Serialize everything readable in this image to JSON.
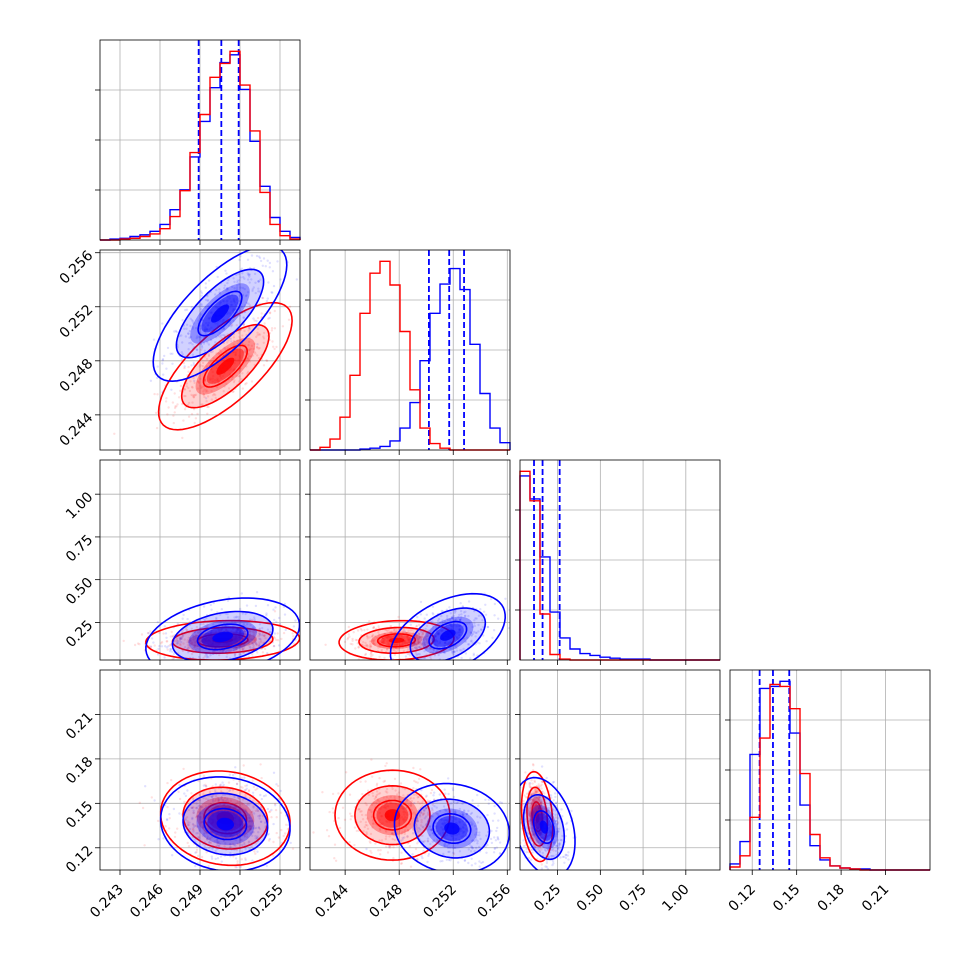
{
  "chart_data": {
    "type": "corner",
    "colors": {
      "blue": "#0000ff",
      "red": "#ff0000",
      "grid": "#b0b0b0"
    },
    "grid": true,
    "parameters": [
      {
        "range": [
          0.2415,
          0.2565
        ],
        "ticks": [
          0.243,
          0.246,
          0.249,
          0.252,
          0.255
        ],
        "tick_labels": [
          "0.243",
          "0.246",
          "0.249",
          "0.252",
          "0.255"
        ]
      },
      {
        "range": [
          0.2414,
          0.2562
        ],
        "ticks": [
          0.244,
          0.248,
          0.252,
          0.256
        ],
        "tick_labels": [
          "0.244",
          "0.248",
          "0.252",
          "0.256"
        ]
      },
      {
        "range": [
          0.03,
          1.2
        ],
        "ticks": [
          0.25,
          0.5,
          0.75,
          1.0
        ],
        "tick_labels": [
          "0.25",
          "0.50",
          "0.75",
          "1.00"
        ]
      },
      {
        "range": [
          0.105,
          0.24
        ],
        "ticks": [
          0.12,
          0.15,
          0.18,
          0.21
        ],
        "tick_labels": [
          "0.12",
          "0.15",
          "0.18",
          "0.21"
        ]
      }
    ],
    "series": [
      {
        "color": "#0000ff",
        "quantiles": [
          [
            0.2489,
            0.2506,
            0.2519
          ],
          [
            0.2502,
            0.2517,
            0.2528
          ],
          [
            0.112,
            0.162,
            0.262
          ],
          [
            0.125,
            0.134,
            0.145
          ]
        ],
        "marginals": [
          {
            "edges_start": 0.2415,
            "bin_width": 0.00075,
            "heights": [
              0,
              1,
              2,
              4,
              6,
              10,
              18,
              35,
              58,
              96,
              137,
              176,
              205,
              214,
              174,
              114,
              62,
              26,
              10,
              3
            ]
          },
          {
            "edges_start": 0.2414,
            "bin_width": 0.00074,
            "heights": [
              0,
              0,
              0,
              0,
              0,
              1,
              2,
              4,
              10,
              24,
              52,
              98,
              150,
              182,
              199,
              176,
              116,
              62,
              24,
              8
            ]
          },
          {
            "edges_start": 0.03,
            "bin_width": 0.0585,
            "heights": [
              200,
              175,
              112,
              52,
              24,
              12,
              7,
              5,
              3,
              2,
              1,
              1,
              1,
              0,
              0,
              0,
              0,
              0,
              0,
              0
            ]
          },
          {
            "edges_start": 0.105,
            "bin_width": 0.00675,
            "heights": [
              6,
              28,
              114,
              179,
              181,
              186,
              135,
              64,
              24,
              10,
              4,
              2,
              1,
              1,
              0,
              0,
              0,
              0,
              0,
              0
            ]
          }
        ]
      },
      {
        "color": "#ff0000",
        "quantiles": null,
        "marginals": [
          {
            "edges_start": 0.2415,
            "bin_width": 0.00075,
            "heights": [
              0,
              0,
              1,
              2,
              4,
              7,
              13,
              27,
              57,
              101,
              145,
              188,
              204,
              218,
              179,
              126,
              55,
              18,
              5,
              1
            ]
          },
          {
            "edges_start": 0.2414,
            "bin_width": 0.00074,
            "heights": [
              0,
              3,
              12,
              36,
              82,
              150,
              194,
              207,
              181,
              130,
              66,
              24,
              7,
              2,
              0,
              0,
              0,
              0,
              0,
              0
            ]
          },
          {
            "edges_start": 0.03,
            "bin_width": 0.0585,
            "heights": [
              205,
              173,
              50,
              6,
              1,
              0,
              0,
              0,
              0,
              0,
              0,
              0,
              0,
              0,
              0,
              0,
              0,
              0,
              0,
              0
            ]
          },
          {
            "edges_start": 0.105,
            "bin_width": 0.00675,
            "heights": [
              3,
              14,
              52,
              130,
              183,
              181,
              159,
              95,
              35,
              12,
              4,
              2,
              1,
              0,
              0,
              0,
              0,
              0,
              0,
              0
            ]
          }
        ]
      }
    ],
    "joint_2d": [
      {
        "pair": [
          0,
          1
        ],
        "blue": {
          "mean": [
            0.2505,
            0.2515
          ],
          "sd": [
            0.00165,
            0.00165
          ],
          "corr": 0.72
        },
        "red": {
          "mean": [
            0.2509,
            0.2476
          ],
          "sd": [
            0.00165,
            0.00155
          ],
          "corr": 0.72
        }
      },
      {
        "pair": [
          0,
          2
        ],
        "blue": {
          "mean": [
            0.2507,
            0.165
          ],
          "sd": [
            0.0019,
            0.075
          ],
          "corr": 0.3
        },
        "red": {
          "mean": [
            0.2507,
            0.145
          ],
          "sd": [
            0.0019,
            0.038
          ],
          "corr": 0.1
        }
      },
      {
        "pair": [
          1,
          2
        ],
        "blue": {
          "mean": [
            0.2516,
            0.175
          ],
          "sd": [
            0.0014,
            0.08
          ],
          "corr": 0.45
        },
        "red": {
          "mean": [
            0.2478,
            0.145
          ],
          "sd": [
            0.0014,
            0.038
          ],
          "corr": 0.1
        }
      },
      {
        "pair": [
          0,
          3
        ],
        "blue": {
          "mean": [
            0.2509,
            0.136
          ],
          "sd": [
            0.0016,
            0.0105
          ],
          "corr": -0.1
        },
        "red": {
          "mean": [
            0.2509,
            0.14
          ],
          "sd": [
            0.0016,
            0.0105
          ],
          "corr": -0.1
        }
      },
      {
        "pair": [
          1,
          3
        ],
        "blue": {
          "mean": [
            0.2519,
            0.133
          ],
          "sd": [
            0.0014,
            0.01
          ],
          "corr": -0.1
        },
        "red": {
          "mean": [
            0.2475,
            0.142
          ],
          "sd": [
            0.0014,
            0.01
          ],
          "corr": 0.0
        }
      },
      {
        "pair": [
          2,
          3
        ],
        "blue": {
          "mean": [
            0.17,
            0.134
          ],
          "sd": [
            0.06,
            0.011
          ],
          "corr": -0.3
        },
        "red": {
          "mean": [
            0.13,
            0.141
          ],
          "sd": [
            0.03,
            0.01
          ],
          "corr": -0.2
        }
      }
    ]
  }
}
